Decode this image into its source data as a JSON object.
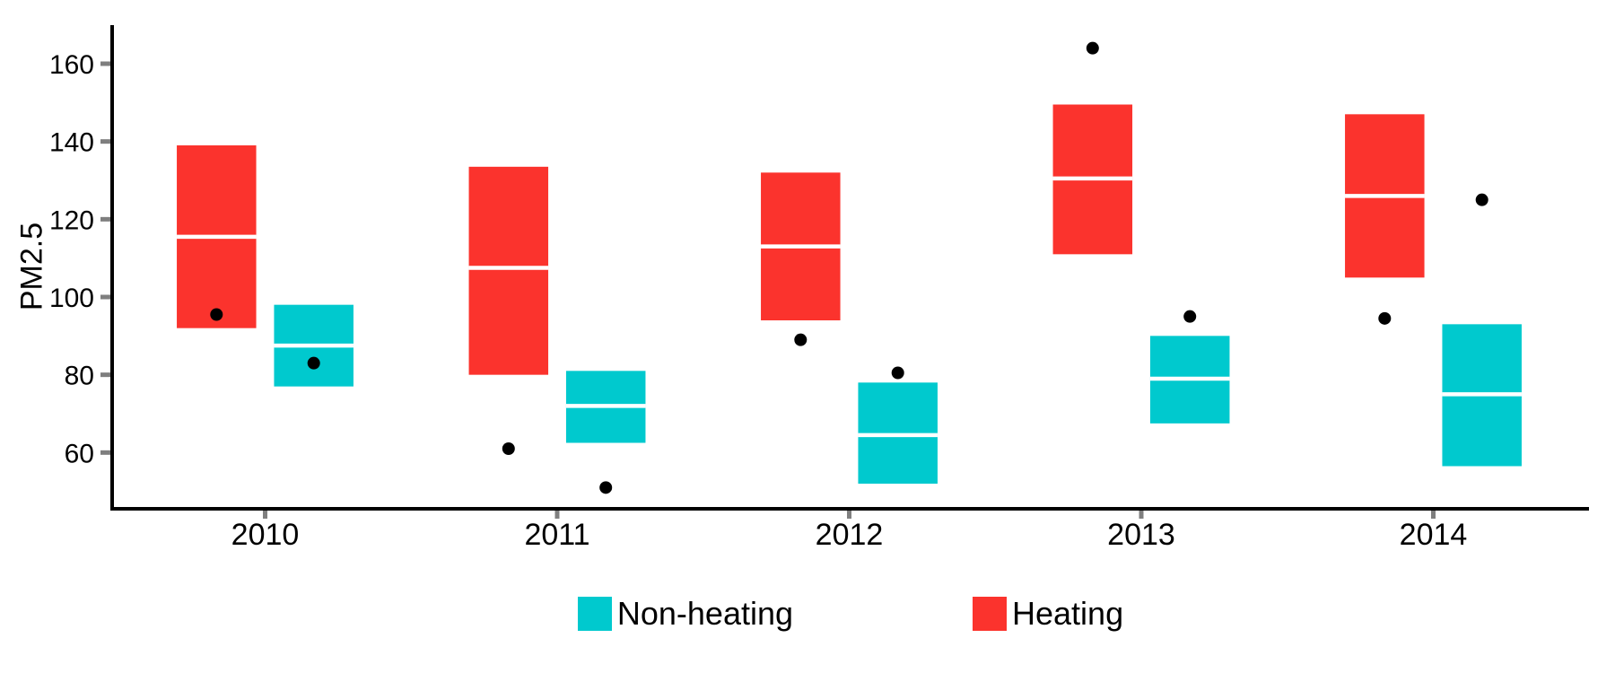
{
  "chart_data": {
    "type": "boxplot",
    "title": "",
    "xlabel": "",
    "ylabel": "PM2.5",
    "categories": [
      "2010",
      "2011",
      "2012",
      "2013",
      "2014"
    ],
    "yticks": [
      60,
      80,
      100,
      120,
      140,
      160
    ],
    "ylim": [
      45,
      170
    ],
    "grid": false,
    "legend_position": "bottom",
    "series": [
      {
        "name": "Heating",
        "color": "#FB332D",
        "boxes": [
          {
            "category": "2010",
            "q1": 92,
            "median": 115.5,
            "q3": 139
          },
          {
            "category": "2011",
            "q1": 80,
            "median": 107.5,
            "q3": 133.5
          },
          {
            "category": "2012",
            "q1": 94,
            "median": 113,
            "q3": 132
          },
          {
            "category": "2013",
            "q1": 111,
            "median": 130.5,
            "q3": 149.5
          },
          {
            "category": "2014",
            "q1": 105,
            "median": 126,
            "q3": 147
          }
        ],
        "outliers": [
          {
            "category": "2010",
            "value": 95.5
          },
          {
            "category": "2011",
            "value": 61
          },
          {
            "category": "2012",
            "value": 89
          },
          {
            "category": "2013",
            "value": 164
          },
          {
            "category": "2014",
            "value": 94.5
          }
        ]
      },
      {
        "name": "Non-heating",
        "color": "#00C9CE",
        "boxes": [
          {
            "category": "2010",
            "q1": 77,
            "median": 87.5,
            "q3": 98
          },
          {
            "category": "2011",
            "q1": 62.5,
            "median": 72,
            "q3": 81
          },
          {
            "category": "2012",
            "q1": 52,
            "median": 64.5,
            "q3": 78
          },
          {
            "category": "2013",
            "q1": 67.5,
            "median": 79,
            "q3": 90
          },
          {
            "category": "2014",
            "q1": 56.5,
            "median": 75,
            "q3": 93
          }
        ],
        "outliers": [
          {
            "category": "2010",
            "value": 83
          },
          {
            "category": "2011",
            "value": 51
          },
          {
            "category": "2012",
            "value": 80.5
          },
          {
            "category": "2013",
            "value": 95
          },
          {
            "category": "2014",
            "value": 125
          }
        ]
      }
    ],
    "legend": [
      {
        "label": "Non-heating",
        "color": "#00C9CE"
      },
      {
        "label": "Heating",
        "color": "#FB332D"
      }
    ],
    "style": {
      "median_line_color": "#FFFFFF",
      "outlier_color": "#000000",
      "axis_color": "#000000",
      "tick_color": "#7F7F7F",
      "text_color": "#000000",
      "background": "#FFFFFF"
    }
  }
}
